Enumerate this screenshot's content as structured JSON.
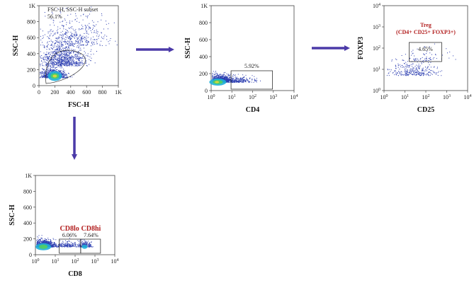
{
  "panels": [
    {
      "y_label": "SSC-H",
      "x_label": "FSC-H",
      "gate_label": "FSC-H, SSC-H subset",
      "percent": "56.1%",
      "xticks": [
        "0",
        "200",
        "400",
        "600",
        "800",
        "1K"
      ],
      "yticks": [
        "0",
        "200",
        "400",
        "600",
        "800",
        "1K"
      ]
    },
    {
      "y_label": "SSC-H",
      "x_label": "CD4",
      "percent": "5.92%",
      "xticks": [
        {
          "base": "10",
          "exp": "0"
        },
        {
          "base": "10",
          "exp": "1"
        },
        {
          "base": "10",
          "exp": "2"
        },
        {
          "base": "10",
          "exp": "3"
        },
        {
          "base": "10",
          "exp": "4"
        }
      ],
      "yticks": [
        "0",
        "200",
        "400",
        "600",
        "800",
        "1K"
      ]
    },
    {
      "y_label": "FOXP3",
      "x_label": "CD25",
      "gate_title": "Treg",
      "gate_subtitle": "(CD4+ CD25+ FOXP3+)",
      "percent": "4.65%",
      "xticks": [
        {
          "base": "10",
          "exp": "0"
        },
        {
          "base": "10",
          "exp": "1"
        },
        {
          "base": "10",
          "exp": "2"
        },
        {
          "base": "10",
          "exp": "3"
        },
        {
          "base": "10",
          "exp": "4"
        }
      ],
      "yticks": [
        {
          "base": "10",
          "exp": "0"
        },
        {
          "base": "10",
          "exp": "1"
        },
        {
          "base": "10",
          "exp": "2"
        },
        {
          "base": "10",
          "exp": "3"
        },
        {
          "base": "10",
          "exp": "4"
        }
      ]
    },
    {
      "y_label": "SSC-H",
      "x_label": "CD8",
      "gate_lo": "CD8lo",
      "gate_hi": "CD8hi",
      "percent_lo": "6.06%",
      "percent_hi": "7.64%",
      "xticks": [
        {
          "base": "10",
          "exp": "0"
        },
        {
          "base": "10",
          "exp": "1"
        },
        {
          "base": "10",
          "exp": "2"
        },
        {
          "base": "10",
          "exp": "3"
        },
        {
          "base": "10",
          "exp": "4"
        }
      ],
      "yticks": [
        "0",
        "200",
        "400",
        "600",
        "800",
        "1K"
      ]
    }
  ]
}
